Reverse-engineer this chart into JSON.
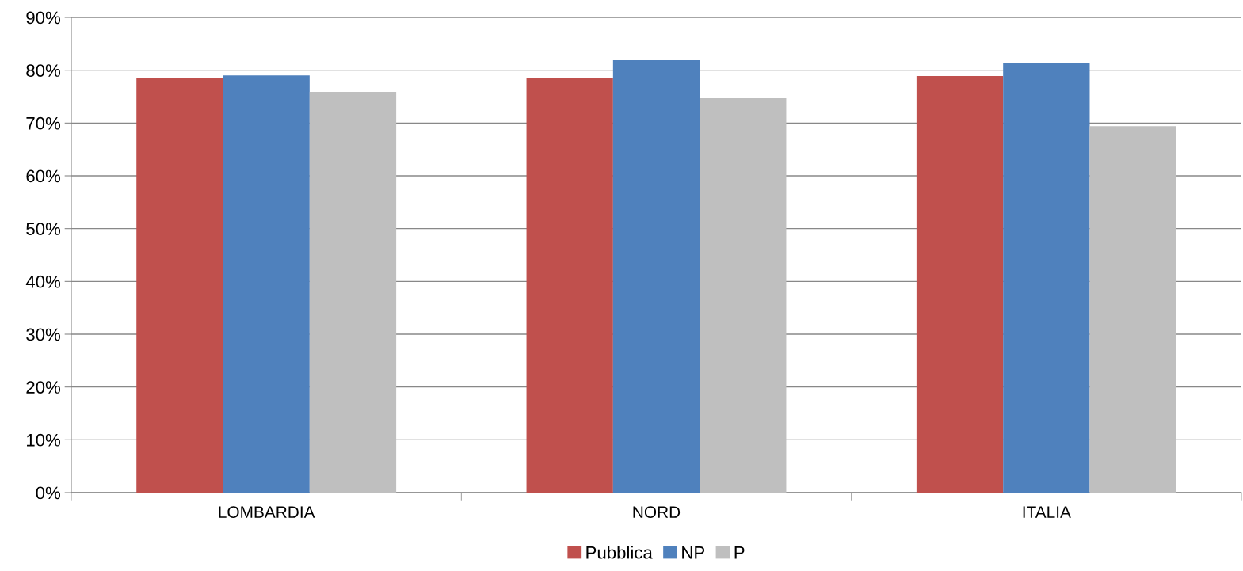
{
  "chart_data": {
    "type": "bar",
    "categories": [
      "LOMBARDIA",
      "NORD",
      "ITALIA"
    ],
    "series": [
      {
        "name": "Pubblica",
        "color": "#c0504d",
        "values": [
          78.6,
          78.6,
          78.9
        ]
      },
      {
        "name": "NP",
        "color": "#4f81bd",
        "values": [
          79.0,
          81.9,
          81.4
        ]
      },
      {
        "name": "P",
        "color": "#bfbfbf",
        "values": [
          75.9,
          74.7,
          69.4
        ]
      }
    ],
    "ylim": [
      0,
      90
    ],
    "yticks": [
      {
        "value": 0,
        "label": "0%"
      },
      {
        "value": 10,
        "label": "10%"
      },
      {
        "value": 20,
        "label": "20%"
      },
      {
        "value": 30,
        "label": "30%"
      },
      {
        "value": 40,
        "label": "40%"
      },
      {
        "value": 50,
        "label": "50%"
      },
      {
        "value": 60,
        "label": "60%"
      },
      {
        "value": 70,
        "label": "70%"
      },
      {
        "value": 80,
        "label": "80%"
      },
      {
        "value": 90,
        "label": "90%"
      }
    ],
    "grid": "y",
    "legend": "bottom"
  }
}
